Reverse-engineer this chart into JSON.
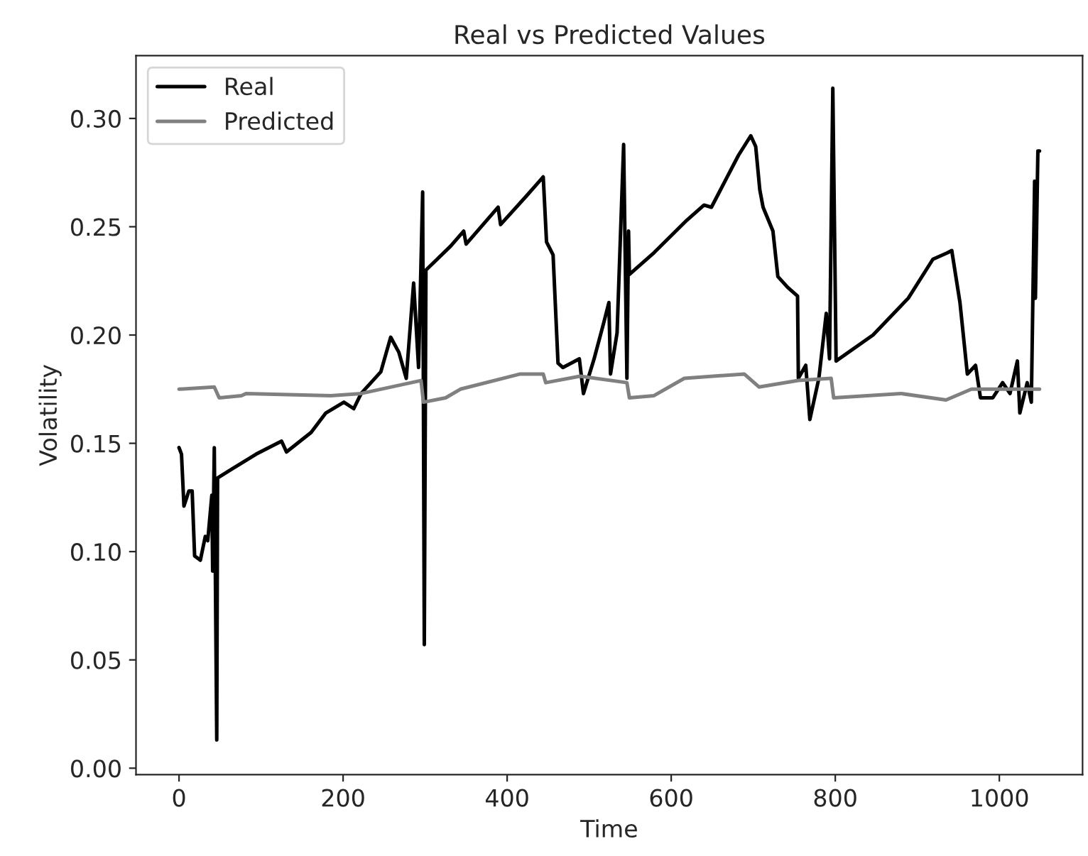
{
  "chart_data": {
    "type": "line",
    "title": "Real vs Predicted Values",
    "xlabel": "Time",
    "ylabel": "Volatility",
    "xlim": [
      -52.45,
      1101.45
    ],
    "ylim": [
      -0.003,
      0.329
    ],
    "xticks": [
      0,
      200,
      400,
      600,
      800,
      1000
    ],
    "yticks": [
      {
        "value": 0,
        "label": "0.00"
      },
      {
        "value": 0.05,
        "label": "0.05"
      },
      {
        "value": 0.1,
        "label": "0.10"
      },
      {
        "value": 0.15,
        "label": "0.15"
      },
      {
        "value": 0.2,
        "label": "0.20"
      },
      {
        "value": 0.25,
        "label": "0.25"
      },
      {
        "value": 0.3,
        "label": "0.30"
      }
    ],
    "grid": false,
    "legend": "top left",
    "line_style": "solid",
    "series": [
      {
        "name": "Real",
        "color": "#000000",
        "x": [
          0,
          3,
          6,
          12,
          16,
          19,
          26,
          32,
          35,
          40,
          41,
          43,
          46,
          47,
          64,
          94,
          125,
          131,
          161,
          179,
          201,
          213,
          222,
          246,
          258,
          268,
          277,
          286,
          292,
          297,
          299,
          301,
          331,
          347,
          350,
          389,
          392,
          423,
          444,
          448,
          456,
          462,
          468,
          488,
          493,
          506,
          518,
          524,
          526,
          534,
          542,
          546,
          548,
          549,
          579,
          619,
          640,
          649,
          682,
          697,
          703,
          708,
          712,
          724,
          730,
          742,
          754,
          755,
          764,
          769,
          780,
          789,
          793,
          797,
          801,
          846,
          889,
          919,
          937,
          942,
          952,
          961,
          971,
          977,
          992,
          1004,
          1013,
          1022,
          1025,
          1034,
          1039,
          1043,
          1044,
          1047,
          1049
        ],
        "values": [
          0.148,
          0.145,
          0.121,
          0.128,
          0.128,
          0.098,
          0.096,
          0.107,
          0.105,
          0.126,
          0.091,
          0.148,
          0.013,
          0.134,
          0.138,
          0.145,
          0.151,
          0.146,
          0.155,
          0.164,
          0.169,
          0.166,
          0.173,
          0.183,
          0.199,
          0.192,
          0.18,
          0.224,
          0.185,
          0.266,
          0.057,
          0.23,
          0.241,
          0.248,
          0.242,
          0.259,
          0.251,
          0.264,
          0.273,
          0.243,
          0.237,
          0.187,
          0.185,
          0.189,
          0.173,
          0.189,
          0.206,
          0.215,
          0.182,
          0.201,
          0.288,
          0.18,
          0.248,
          0.228,
          0.238,
          0.253,
          0.26,
          0.259,
          0.283,
          0.292,
          0.287,
          0.267,
          0.259,
          0.248,
          0.227,
          0.222,
          0.218,
          0.18,
          0.186,
          0.161,
          0.18,
          0.21,
          0.189,
          0.314,
          0.188,
          0.2,
          0.217,
          0.235,
          0.238,
          0.239,
          0.215,
          0.182,
          0.186,
          0.171,
          0.171,
          0.178,
          0.173,
          0.188,
          0.164,
          0.178,
          0.169,
          0.271,
          0.217,
          0.285,
          0.285
        ]
      },
      {
        "name": "Predicted",
        "color": "#808080",
        "x": [
          0,
          43,
          49,
          76,
          82,
          185,
          222,
          295,
          298,
          325,
          343,
          416,
          444,
          447,
          489,
          546,
          549,
          579,
          616,
          689,
          707,
          755,
          795,
          798,
          880,
          935,
          966,
          1004,
          1049
        ],
        "values": [
          0.175,
          0.176,
          0.171,
          0.172,
          0.173,
          0.172,
          0.173,
          0.179,
          0.169,
          0.171,
          0.175,
          0.182,
          0.182,
          0.178,
          0.181,
          0.178,
          0.171,
          0.172,
          0.18,
          0.182,
          0.176,
          0.179,
          0.18,
          0.171,
          0.173,
          0.17,
          0.175,
          0.175,
          0.175
        ]
      }
    ]
  }
}
